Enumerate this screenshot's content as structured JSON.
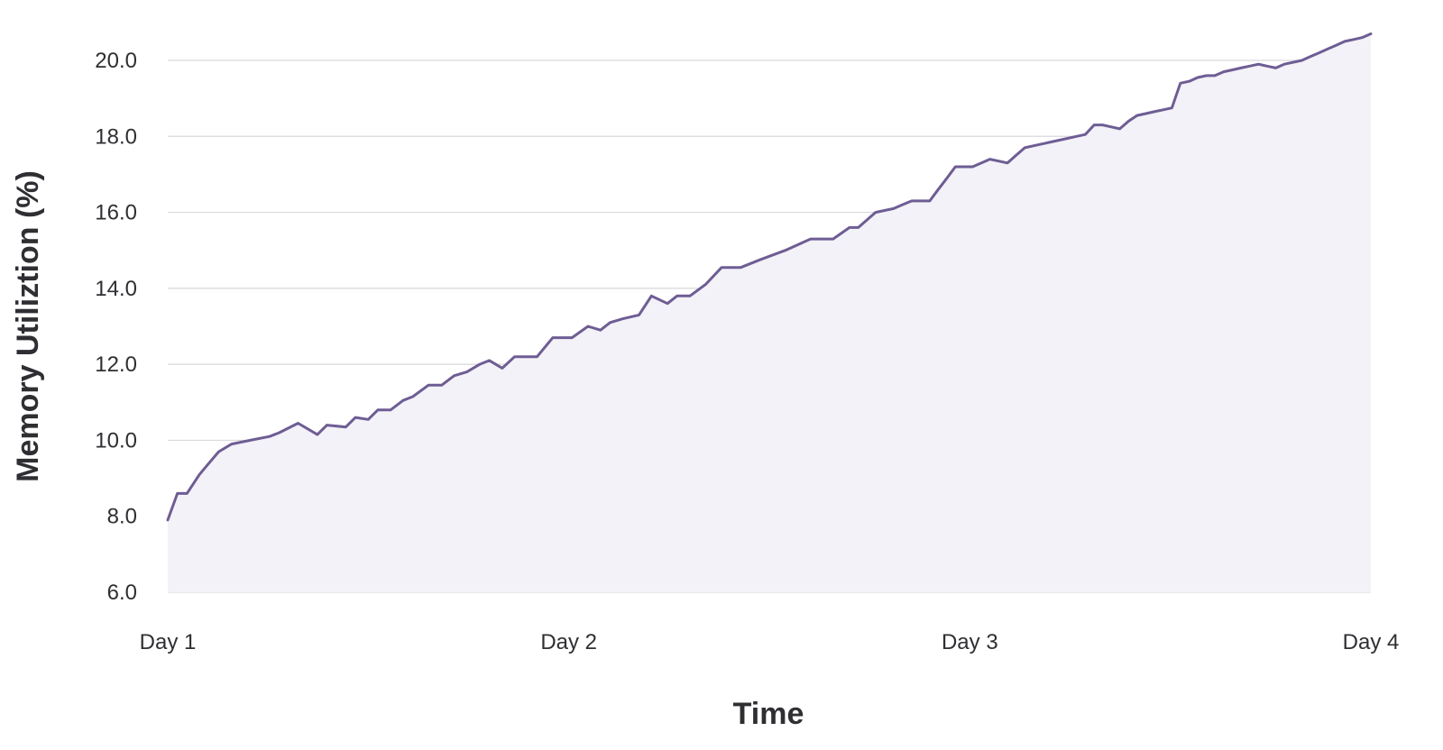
{
  "chart_data": {
    "type": "area",
    "title": "",
    "xlabel": "Time",
    "ylabel": "Memory Utiliztion (%)",
    "x_tick_labels": [
      "Day 1",
      "Day 2",
      "Day 3",
      "Day 4"
    ],
    "y_ticks": [
      6.0,
      8.0,
      10.0,
      12.0,
      14.0,
      16.0,
      18.0,
      20.0
    ],
    "y_tick_labels": [
      "6.0",
      "8.0",
      "10.0",
      "12.0",
      "14.0",
      "16.0",
      "18.0",
      "20.0"
    ],
    "xlim": [
      1,
      4
    ],
    "ylim": [
      6.0,
      20.8
    ],
    "grid": true,
    "colors": {
      "line": "#6e5d94",
      "fill": "#f3f2f8",
      "grid": "#d9d9de"
    },
    "series": [
      {
        "x": [
          1.0,
          1.024,
          1.048,
          1.079,
          1.095,
          1.127,
          1.159,
          1.206,
          1.254,
          1.278,
          1.325,
          1.373,
          1.397,
          1.444,
          1.468,
          1.5,
          1.524,
          1.556,
          1.587,
          1.611,
          1.65,
          1.683,
          1.714,
          1.746,
          1.778,
          1.802,
          1.834,
          1.865,
          1.889,
          1.921,
          1.96,
          1.984,
          2.008,
          2.048,
          2.079,
          2.103,
          2.135,
          2.175,
          2.206,
          2.246,
          2.27,
          2.302,
          2.341,
          2.381,
          2.429,
          2.476,
          2.54,
          2.603,
          2.659,
          2.7,
          2.722,
          2.765,
          2.787,
          2.81,
          2.832,
          2.855,
          2.877,
          2.9,
          2.921,
          2.943,
          2.964,
          2.986,
          3.007,
          3.029,
          3.05,
          3.072,
          3.094,
          3.115,
          3.137,
          3.158,
          3.18,
          3.201,
          3.223,
          3.245,
          3.266,
          3.288,
          3.31,
          3.331,
          3.353,
          3.374,
          3.396,
          3.417,
          3.439,
          3.46,
          3.482,
          3.504,
          3.525,
          3.547,
          3.568,
          3.59,
          3.611,
          3.633,
          3.655,
          3.676,
          3.698,
          3.72,
          3.741,
          3.763,
          3.784,
          3.806,
          3.828,
          3.849,
          3.871,
          3.892,
          3.914,
          3.935,
          3.957,
          3.978,
          4.0
        ],
        "y": [
          7.9,
          8.6,
          8.6,
          9.1,
          9.3,
          9.7,
          9.9,
          10.0,
          10.1,
          10.2,
          10.45,
          10.15,
          10.4,
          10.35,
          10.6,
          10.55,
          10.8,
          10.8,
          11.05,
          11.15,
          11.45,
          11.45,
          11.7,
          11.8,
          12.0,
          12.1,
          11.9,
          12.2,
          12.2,
          12.2,
          12.7,
          12.7,
          12.7,
          13.0,
          12.9,
          13.1,
          13.2,
          13.3,
          13.8,
          13.6,
          13.8,
          13.8,
          14.1,
          14.55,
          14.55,
          14.75,
          15.0,
          15.3,
          15.3,
          15.6,
          15.6,
          16.0,
          16.05,
          16.1,
          16.2,
          16.3,
          16.3,
          16.3,
          16.6,
          16.9,
          17.2,
          17.2,
          17.2,
          17.3,
          17.4,
          17.35,
          17.3,
          17.5,
          17.7,
          17.75,
          17.8,
          17.85,
          17.9,
          17.95,
          18.0,
          18.05,
          18.3,
          18.3,
          18.25,
          18.2,
          18.4,
          18.55,
          18.6,
          18.65,
          18.7,
          18.75,
          19.4,
          19.45,
          19.55,
          19.6,
          19.6,
          19.7,
          19.75,
          19.8,
          19.85,
          19.9,
          19.85,
          19.8,
          19.9,
          19.95,
          20.0,
          20.1,
          20.2,
          20.3,
          20.4,
          20.5,
          20.55,
          20.6,
          20.7
        ]
      }
    ]
  }
}
